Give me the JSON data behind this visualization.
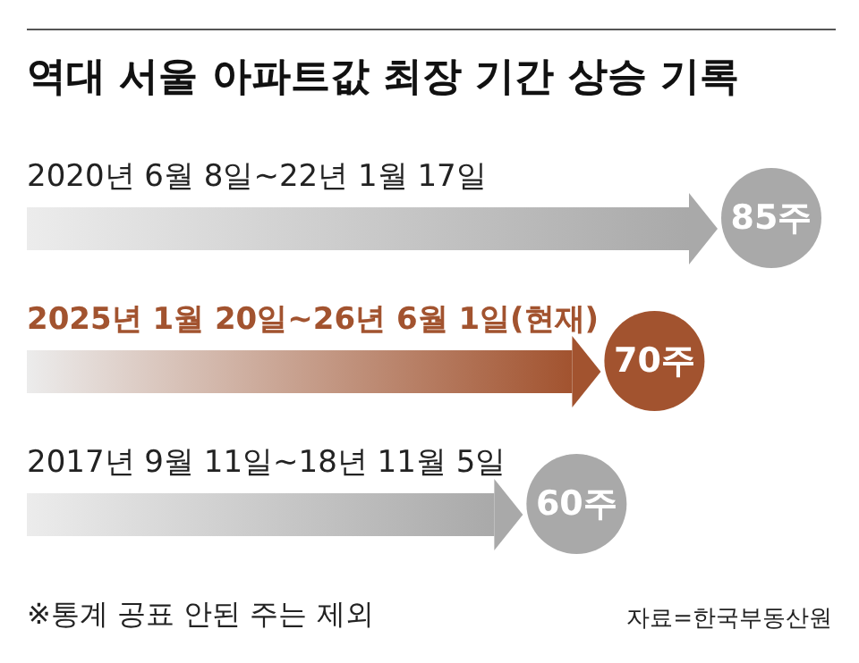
{
  "chart_data": {
    "type": "bar",
    "orientation": "horizontal",
    "title": "역대 서울 아파트값 최장 기간 상승 기록",
    "categories": [
      "2020년 6월 8일~22년 1월 17일",
      "2025년 1월 20일~26년 6월 1일(현재)",
      "2017년 9월 11일~18년 11월 5일"
    ],
    "values": [
      85,
      70,
      60
    ],
    "colors": [
      "#a9a9a9",
      "#a2532f",
      "#a9a9a9"
    ],
    "value_labels": [
      "85주",
      "70주",
      "60주"
    ],
    "annotations": [
      "※통계 공표 안된 주는 제외",
      "자료=한국부동산원"
    ]
  }
}
